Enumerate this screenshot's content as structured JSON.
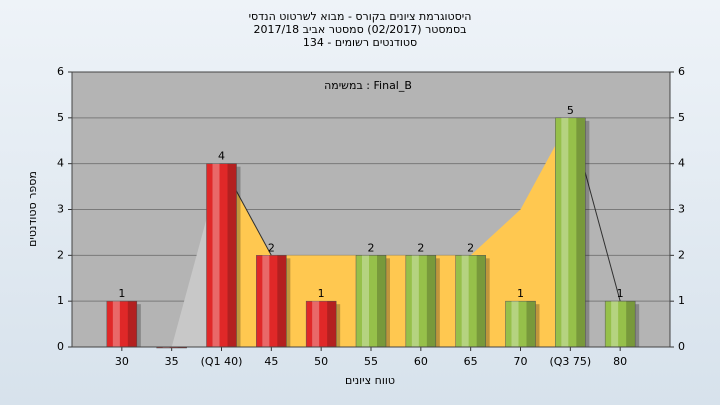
{
  "chart_data": {
    "type": "bar",
    "title": [
      "היסטוגרמת ציונים בקורס - מבוא לשרטוט הנדסי",
      "בסמסטר  (02/2017)  סמסטר אביב 2017/18",
      "סטודנטים רשומים - 134"
    ],
    "annotation": "במשימה : Final_B",
    "x_label": "טווח ציונים",
    "y_label": "מספר סטודנטים",
    "x": [
      30,
      35,
      40,
      45,
      50,
      55,
      60,
      65,
      70,
      75,
      80
    ],
    "values": [
      1,
      0,
      4,
      2,
      1,
      2,
      2,
      2,
      1,
      5,
      1
    ],
    "value_labels": [
      "1",
      null,
      "4",
      "2",
      "1",
      "2",
      "2",
      "2",
      "1",
      "5",
      "1"
    ],
    "colors": [
      "#e02828",
      "#e02828",
      "#e02828",
      "#e02828",
      "#e02828",
      "#96c04a",
      "#96c04a",
      "#96c04a",
      "#96c04a",
      "#96c04a",
      "#96c04a"
    ],
    "areas": [
      {
        "color": "#c8c8c8",
        "values": [
          null,
          0,
          4,
          null,
          null,
          null,
          null,
          null,
          null,
          null,
          null
        ]
      },
      {
        "color": "#ffc850",
        "values": [
          null,
          null,
          4,
          2,
          2,
          2,
          2,
          2,
          3,
          5,
          null
        ]
      }
    ],
    "lines": [
      {
        "color": "#303030",
        "values": [
          null,
          null,
          4,
          2,
          null,
          null,
          null,
          null,
          null,
          null,
          null
        ]
      },
      {
        "color": "#303030",
        "values": [
          null,
          null,
          null,
          null,
          null,
          null,
          null,
          null,
          null,
          5,
          1
        ]
      }
    ],
    "xlim": [
      25,
      85
    ],
    "xticks": [
      30,
      35,
      {
        "value": 40,
        "label": "(Q1 40)"
      },
      45,
      50,
      55,
      60,
      65,
      70,
      {
        "value": 75,
        "label": "(Q3 75)"
      },
      80
    ],
    "ylim": [
      0,
      6
    ],
    "yticks": [
      0,
      1,
      2,
      3,
      4,
      5,
      6
    ],
    "grid": true
  }
}
